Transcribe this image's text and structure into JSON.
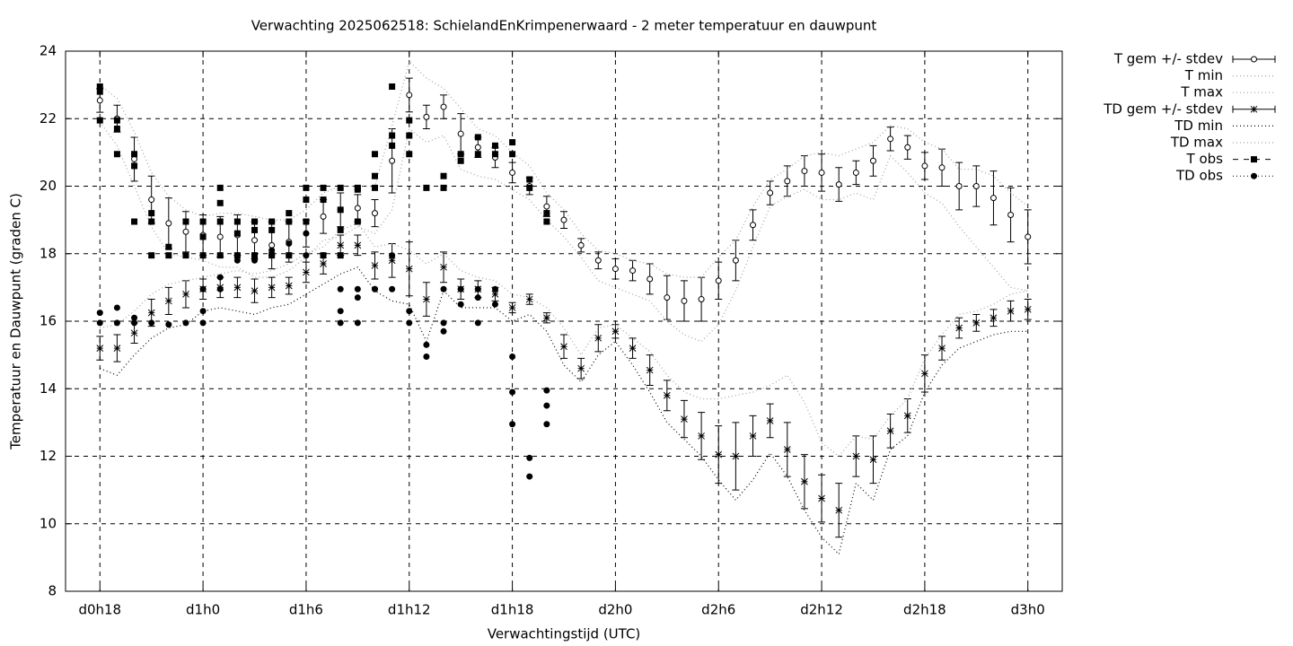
{
  "chart_data": {
    "type": "line",
    "title": "Verwachting 2025062518: SchielandEnKrimpenerwaard - 2 meter temperatuur en dauwpunt",
    "xlabel": "Verwachtingstijd (UTC)",
    "ylabel": "Temperatuur en Dauwpunt (graden C)",
    "x": [
      18,
      19,
      20,
      21,
      22,
      23,
      24,
      25,
      26,
      27,
      28,
      29,
      30,
      31,
      32,
      33,
      34,
      35,
      36,
      37,
      38,
      39,
      40,
      41,
      42,
      43,
      44,
      45,
      46,
      47,
      48,
      49,
      50,
      51,
      52,
      53,
      54,
      55,
      56,
      57,
      58,
      59,
      60,
      61,
      62,
      63,
      64,
      65,
      66,
      67,
      68,
      69,
      70,
      71,
      72
    ],
    "xlim": [
      16,
      74
    ],
    "xticks": [
      {
        "value": 18,
        "label": "d0h18"
      },
      {
        "value": 24,
        "label": "d1h0"
      },
      {
        "value": 30,
        "label": "d1h6"
      },
      {
        "value": 36,
        "label": "d1h12"
      },
      {
        "value": 42,
        "label": "d1h18"
      },
      {
        "value": 48,
        "label": "d2h0"
      },
      {
        "value": 54,
        "label": "d2h6"
      },
      {
        "value": 60,
        "label": "d2h12"
      },
      {
        "value": 66,
        "label": "d2h18"
      },
      {
        "value": 72,
        "label": "d3h0"
      }
    ],
    "ylim": [
      8,
      24
    ],
    "yticks": [
      8,
      10,
      12,
      14,
      16,
      18,
      20,
      22,
      24
    ],
    "grid": true,
    "legend": "outside-right",
    "series": [
      {
        "name": "T gem +/- stdev",
        "color": "#000000",
        "style": "errorbar",
        "marker": "open-circle",
        "values": [
          22.54,
          22.0,
          20.8,
          19.6,
          18.9,
          18.65,
          18.55,
          18.5,
          18.55,
          18.4,
          18.25,
          18.35,
          18.6,
          19.1,
          19.3,
          19.35,
          19.2,
          20.75,
          22.7,
          22.05,
          22.35,
          21.55,
          21.15,
          20.85,
          20.4,
          20.0,
          19.4,
          19.0,
          18.25,
          17.8,
          17.55,
          17.5,
          17.25,
          16.7,
          16.6,
          16.65,
          17.2,
          17.8,
          18.85,
          19.8,
          20.15,
          20.45,
          20.4,
          20.05,
          20.4,
          20.75,
          21.4,
          21.15,
          20.6,
          20.55,
          20.0,
          20.0,
          19.65,
          19.15,
          18.5
        ],
        "errors": [
          0.35,
          0.4,
          0.65,
          0.7,
          0.75,
          0.6,
          0.6,
          0.6,
          0.6,
          0.55,
          0.7,
          0.6,
          0.4,
          0.5,
          0.5,
          0.4,
          0.4,
          0.95,
          0.5,
          0.35,
          0.35,
          0.6,
          0.3,
          0.3,
          0.3,
          0.25,
          0.3,
          0.25,
          0.2,
          0.25,
          0.3,
          0.3,
          0.45,
          0.65,
          0.6,
          0.65,
          0.55,
          0.6,
          0.45,
          0.35,
          0.45,
          0.45,
          0.55,
          0.5,
          0.35,
          0.45,
          0.35,
          0.35,
          0.4,
          0.55,
          0.7,
          0.6,
          0.8,
          0.8,
          0.8
        ]
      },
      {
        "name": "T min",
        "color": "#a0a0a0",
        "style": "dotted",
        "values": [
          21.9,
          21.2,
          20.0,
          18.8,
          18.0,
          17.9,
          17.8,
          17.6,
          17.6,
          17.3,
          17.3,
          17.5,
          17.9,
          18.4,
          18.5,
          18.8,
          18.6,
          19.3,
          21.7,
          21.3,
          21.5,
          20.5,
          20.3,
          20.2,
          19.9,
          19.6,
          19.0,
          18.5,
          17.9,
          17.2,
          17.0,
          16.8,
          16.6,
          16.0,
          15.6,
          15.4,
          15.9,
          16.9,
          18.2,
          19.4,
          19.7,
          19.9,
          19.6,
          19.6,
          19.8,
          19.6,
          20.9,
          20.4,
          19.8,
          19.5,
          18.8,
          18.2,
          17.6,
          17.0,
          16.9
        ]
      },
      {
        "name": "T max",
        "color": "#a0a0a0",
        "style": "dotted",
        "values": [
          23.0,
          22.6,
          21.6,
          20.4,
          19.7,
          19.3,
          19.1,
          19.2,
          19.2,
          19.1,
          19.0,
          19.0,
          19.3,
          19.8,
          20.0,
          20.0,
          20.0,
          21.8,
          23.7,
          23.2,
          22.9,
          22.3,
          21.7,
          21.5,
          21.0,
          20.6,
          19.8,
          19.3,
          18.6,
          18.1,
          18.0,
          17.8,
          17.7,
          17.4,
          17.3,
          17.3,
          17.9,
          18.4,
          19.4,
          20.2,
          20.5,
          20.9,
          21.0,
          20.9,
          21.1,
          21.3,
          21.8,
          21.7,
          21.3,
          21.1,
          20.5,
          20.5,
          20.3,
          19.8,
          19.4
        ]
      },
      {
        "name": "TD gem +/- stdev",
        "color": "#000000",
        "style": "errorbar",
        "marker": "star",
        "values": [
          15.2,
          15.2,
          15.65,
          16.25,
          16.6,
          16.8,
          16.95,
          17.0,
          17.0,
          16.9,
          17.0,
          17.05,
          17.45,
          17.7,
          18.25,
          18.25,
          17.65,
          17.8,
          17.55,
          16.65,
          17.6,
          16.95,
          16.95,
          16.8,
          16.4,
          16.65,
          16.1,
          15.25,
          14.6,
          15.5,
          15.7,
          15.2,
          14.55,
          13.8,
          13.1,
          12.6,
          12.05,
          12.0,
          12.6,
          13.05,
          12.2,
          11.25,
          10.75,
          10.4,
          12.0,
          11.9,
          12.75,
          13.2,
          14.45,
          15.2,
          15.8,
          15.95,
          16.1,
          16.3,
          16.35
        ],
        "errors": [
          0.35,
          0.4,
          0.3,
          0.4,
          0.4,
          0.4,
          0.3,
          0.3,
          0.3,
          0.35,
          0.3,
          0.25,
          0.3,
          0.3,
          0.3,
          0.3,
          0.4,
          0.5,
          0.8,
          0.5,
          0.45,
          0.3,
          0.25,
          0.2,
          0.15,
          0.15,
          0.15,
          0.35,
          0.3,
          0.4,
          0.2,
          0.3,
          0.45,
          0.45,
          0.55,
          0.7,
          0.85,
          1.0,
          0.6,
          0.5,
          0.8,
          0.8,
          0.7,
          0.8,
          0.6,
          0.7,
          0.5,
          0.5,
          0.55,
          0.35,
          0.3,
          0.25,
          0.25,
          0.3,
          0.3
        ]
      },
      {
        "name": "TD min",
        "color": "#000000",
        "style": "dotted",
        "values": [
          14.6,
          14.4,
          15.0,
          15.5,
          15.8,
          15.9,
          16.3,
          16.4,
          16.3,
          16.2,
          16.4,
          16.5,
          16.8,
          17.1,
          17.4,
          17.6,
          16.9,
          16.6,
          16.5,
          15.4,
          16.9,
          16.4,
          16.4,
          16.4,
          16.0,
          16.2,
          15.7,
          14.7,
          14.2,
          15.0,
          15.4,
          14.7,
          13.9,
          13.0,
          12.5,
          12.0,
          11.3,
          10.7,
          11.3,
          12.1,
          11.4,
          10.4,
          9.6,
          9.1,
          11.2,
          10.7,
          12.2,
          12.6,
          13.9,
          14.7,
          15.2,
          15.4,
          15.6,
          15.7,
          15.7
        ]
      },
      {
        "name": "TD max",
        "color": "#a0a0a0",
        "style": "dotted",
        "values": [
          15.8,
          15.9,
          16.3,
          16.8,
          17.1,
          17.2,
          17.3,
          17.4,
          17.5,
          17.4,
          17.5,
          17.7,
          18.0,
          18.2,
          18.7,
          18.9,
          18.2,
          18.3,
          18.1,
          17.7,
          18.0,
          17.5,
          17.3,
          17.2,
          16.8,
          16.7,
          16.4,
          15.8,
          15.0,
          15.8,
          15.9,
          15.5,
          15.1,
          14.4,
          13.9,
          13.7,
          13.7,
          13.8,
          13.9,
          14.1,
          14.4,
          13.6,
          12.4,
          12.0,
          12.6,
          12.5,
          13.2,
          13.7,
          14.9,
          15.6,
          16.2,
          16.3,
          16.5,
          16.8,
          16.9
        ]
      },
      {
        "name": "T obs",
        "color": "#000000",
        "style": "points",
        "marker": "square",
        "x": [
          18,
          18,
          18,
          19,
          19,
          19,
          20,
          20,
          20,
          21,
          21,
          21,
          22,
          22,
          23,
          23,
          24,
          24,
          24,
          25,
          25,
          25,
          25,
          26,
          26,
          26,
          27,
          27,
          27,
          28,
          28,
          28,
          29,
          29,
          29,
          30,
          30,
          30,
          31,
          31,
          31,
          32,
          32,
          32,
          32,
          33,
          33,
          33,
          34,
          34,
          34,
          35,
          35,
          35,
          36,
          36,
          36,
          37,
          38,
          38,
          39,
          39,
          40,
          40,
          41,
          41,
          42,
          42,
          43,
          43,
          44,
          44
        ],
        "values": [
          22.95,
          22.8,
          21.95,
          21.95,
          21.7,
          20.95,
          20.95,
          20.6,
          18.95,
          19.2,
          18.95,
          17.95,
          18.2,
          17.95,
          18.95,
          17.95,
          18.95,
          18.5,
          17.95,
          19.95,
          19.5,
          18.95,
          17.95,
          18.95,
          18.6,
          17.95,
          18.95,
          18.7,
          17.95,
          18.95,
          18.7,
          17.95,
          19.2,
          18.95,
          17.95,
          19.95,
          19.6,
          18.95,
          19.95,
          19.6,
          17.95,
          19.95,
          19.3,
          18.7,
          17.95,
          19.95,
          19.9,
          18.95,
          20.95,
          20.3,
          19.95,
          22.95,
          21.5,
          21.2,
          21.95,
          21.5,
          20.95,
          19.95,
          20.3,
          19.95,
          20.95,
          20.75,
          21.45,
          20.95,
          21.2,
          20.95,
          21.3,
          20.95,
          20.2,
          19.95,
          19.2,
          18.95
        ]
      },
      {
        "name": "TD obs",
        "color": "#000000",
        "style": "points",
        "marker": "dot",
        "x": [
          18,
          18,
          19,
          19,
          20,
          20,
          21,
          22,
          23,
          24,
          24,
          24,
          25,
          25,
          25,
          26,
          26,
          27,
          27,
          28,
          28,
          29,
          29,
          30,
          30,
          30,
          31,
          32,
          32,
          32,
          33,
          33,
          33,
          34,
          34,
          35,
          35,
          36,
          36,
          37,
          37,
          38,
          38,
          38,
          39,
          39,
          40,
          40,
          40,
          41,
          41,
          42,
          42,
          42,
          43,
          43,
          44,
          44,
          44
        ],
        "values": [
          16.25,
          15.95,
          16.4,
          15.95,
          16.1,
          15.95,
          15.95,
          15.9,
          15.95,
          16.95,
          16.3,
          15.95,
          17.95,
          17.3,
          16.95,
          17.95,
          17.8,
          17.95,
          17.8,
          18.1,
          17.95,
          18.3,
          17.95,
          18.95,
          18.6,
          17.95,
          17.95,
          16.95,
          16.3,
          15.95,
          16.95,
          16.7,
          15.95,
          16.95,
          16.95,
          17.95,
          16.95,
          16.3,
          15.95,
          15.3,
          14.95,
          16.95,
          15.95,
          15.7,
          16.95,
          16.5,
          16.95,
          16.7,
          15.95,
          16.95,
          16.5,
          14.95,
          13.9,
          12.95,
          11.95,
          11.4,
          13.95,
          13.5,
          12.95
        ]
      }
    ]
  }
}
